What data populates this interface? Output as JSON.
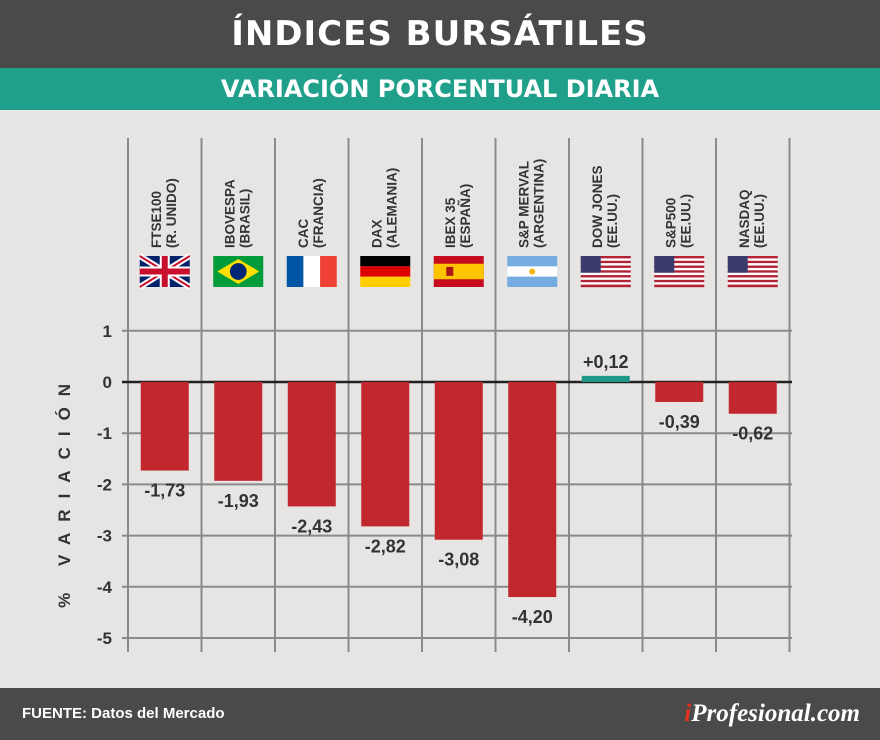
{
  "header": {
    "title": "ÍNDICES BURSÁTILES",
    "subtitle": "VARIACIÓN PORCENTUAL DIARIA"
  },
  "footer": {
    "source": "FUENTE: Datos del Mercado",
    "logo_prefix": "i",
    "logo_name": "Profesional.com"
  },
  "colors": {
    "negative": "#c1272d",
    "positive": "#1f9a86",
    "grid": "#8a8a8a",
    "text": "#333333"
  },
  "chart_data": {
    "type": "bar",
    "title": "ÍNDICES BURSÁTILES",
    "subtitle": "VARIACIÓN PORCENTUAL DIARIA",
    "ylabel": "% VARIACIÓN",
    "ylim": [
      -5,
      1
    ],
    "yticks": [
      "1",
      "0",
      "-1",
      "-2",
      "-3",
      "-4",
      "-5"
    ],
    "grid": true,
    "categories": [
      {
        "name": "FTSE100",
        "country": "(R. UNIDO)",
        "flag": "uk-flag"
      },
      {
        "name": "IBOVESPA",
        "country": "(BRASIL)",
        "flag": "brazil-flag"
      },
      {
        "name": "CAC",
        "country": "(FRANCIA)",
        "flag": "france-flag"
      },
      {
        "name": "DAX",
        "country": "(ALEMANIA)",
        "flag": "germany-flag"
      },
      {
        "name": "IBEX 35",
        "country": "(ESPAÑA)",
        "flag": "spain-flag"
      },
      {
        "name": "S&P MERVAL",
        "country": "(ARGENTINA)",
        "flag": "argentina-flag"
      },
      {
        "name": "DOW JONES",
        "country": "(EE.UU.)",
        "flag": "usa-flag"
      },
      {
        "name": "S&P500",
        "country": "(EE.UU.)",
        "flag": "usa-flag"
      },
      {
        "name": "NASDAQ",
        "country": "(EE.UU.)",
        "flag": "usa-flag"
      }
    ],
    "values": [
      -1.73,
      -1.93,
      -2.43,
      -2.82,
      -3.08,
      -4.2,
      0.12,
      -0.39,
      -0.62
    ],
    "value_labels": [
      "-1,73",
      "-1,93",
      "-2,43",
      "-2,82",
      "-3,08",
      "-4,20",
      "+0,12",
      "-0,39",
      "-0,62"
    ]
  }
}
